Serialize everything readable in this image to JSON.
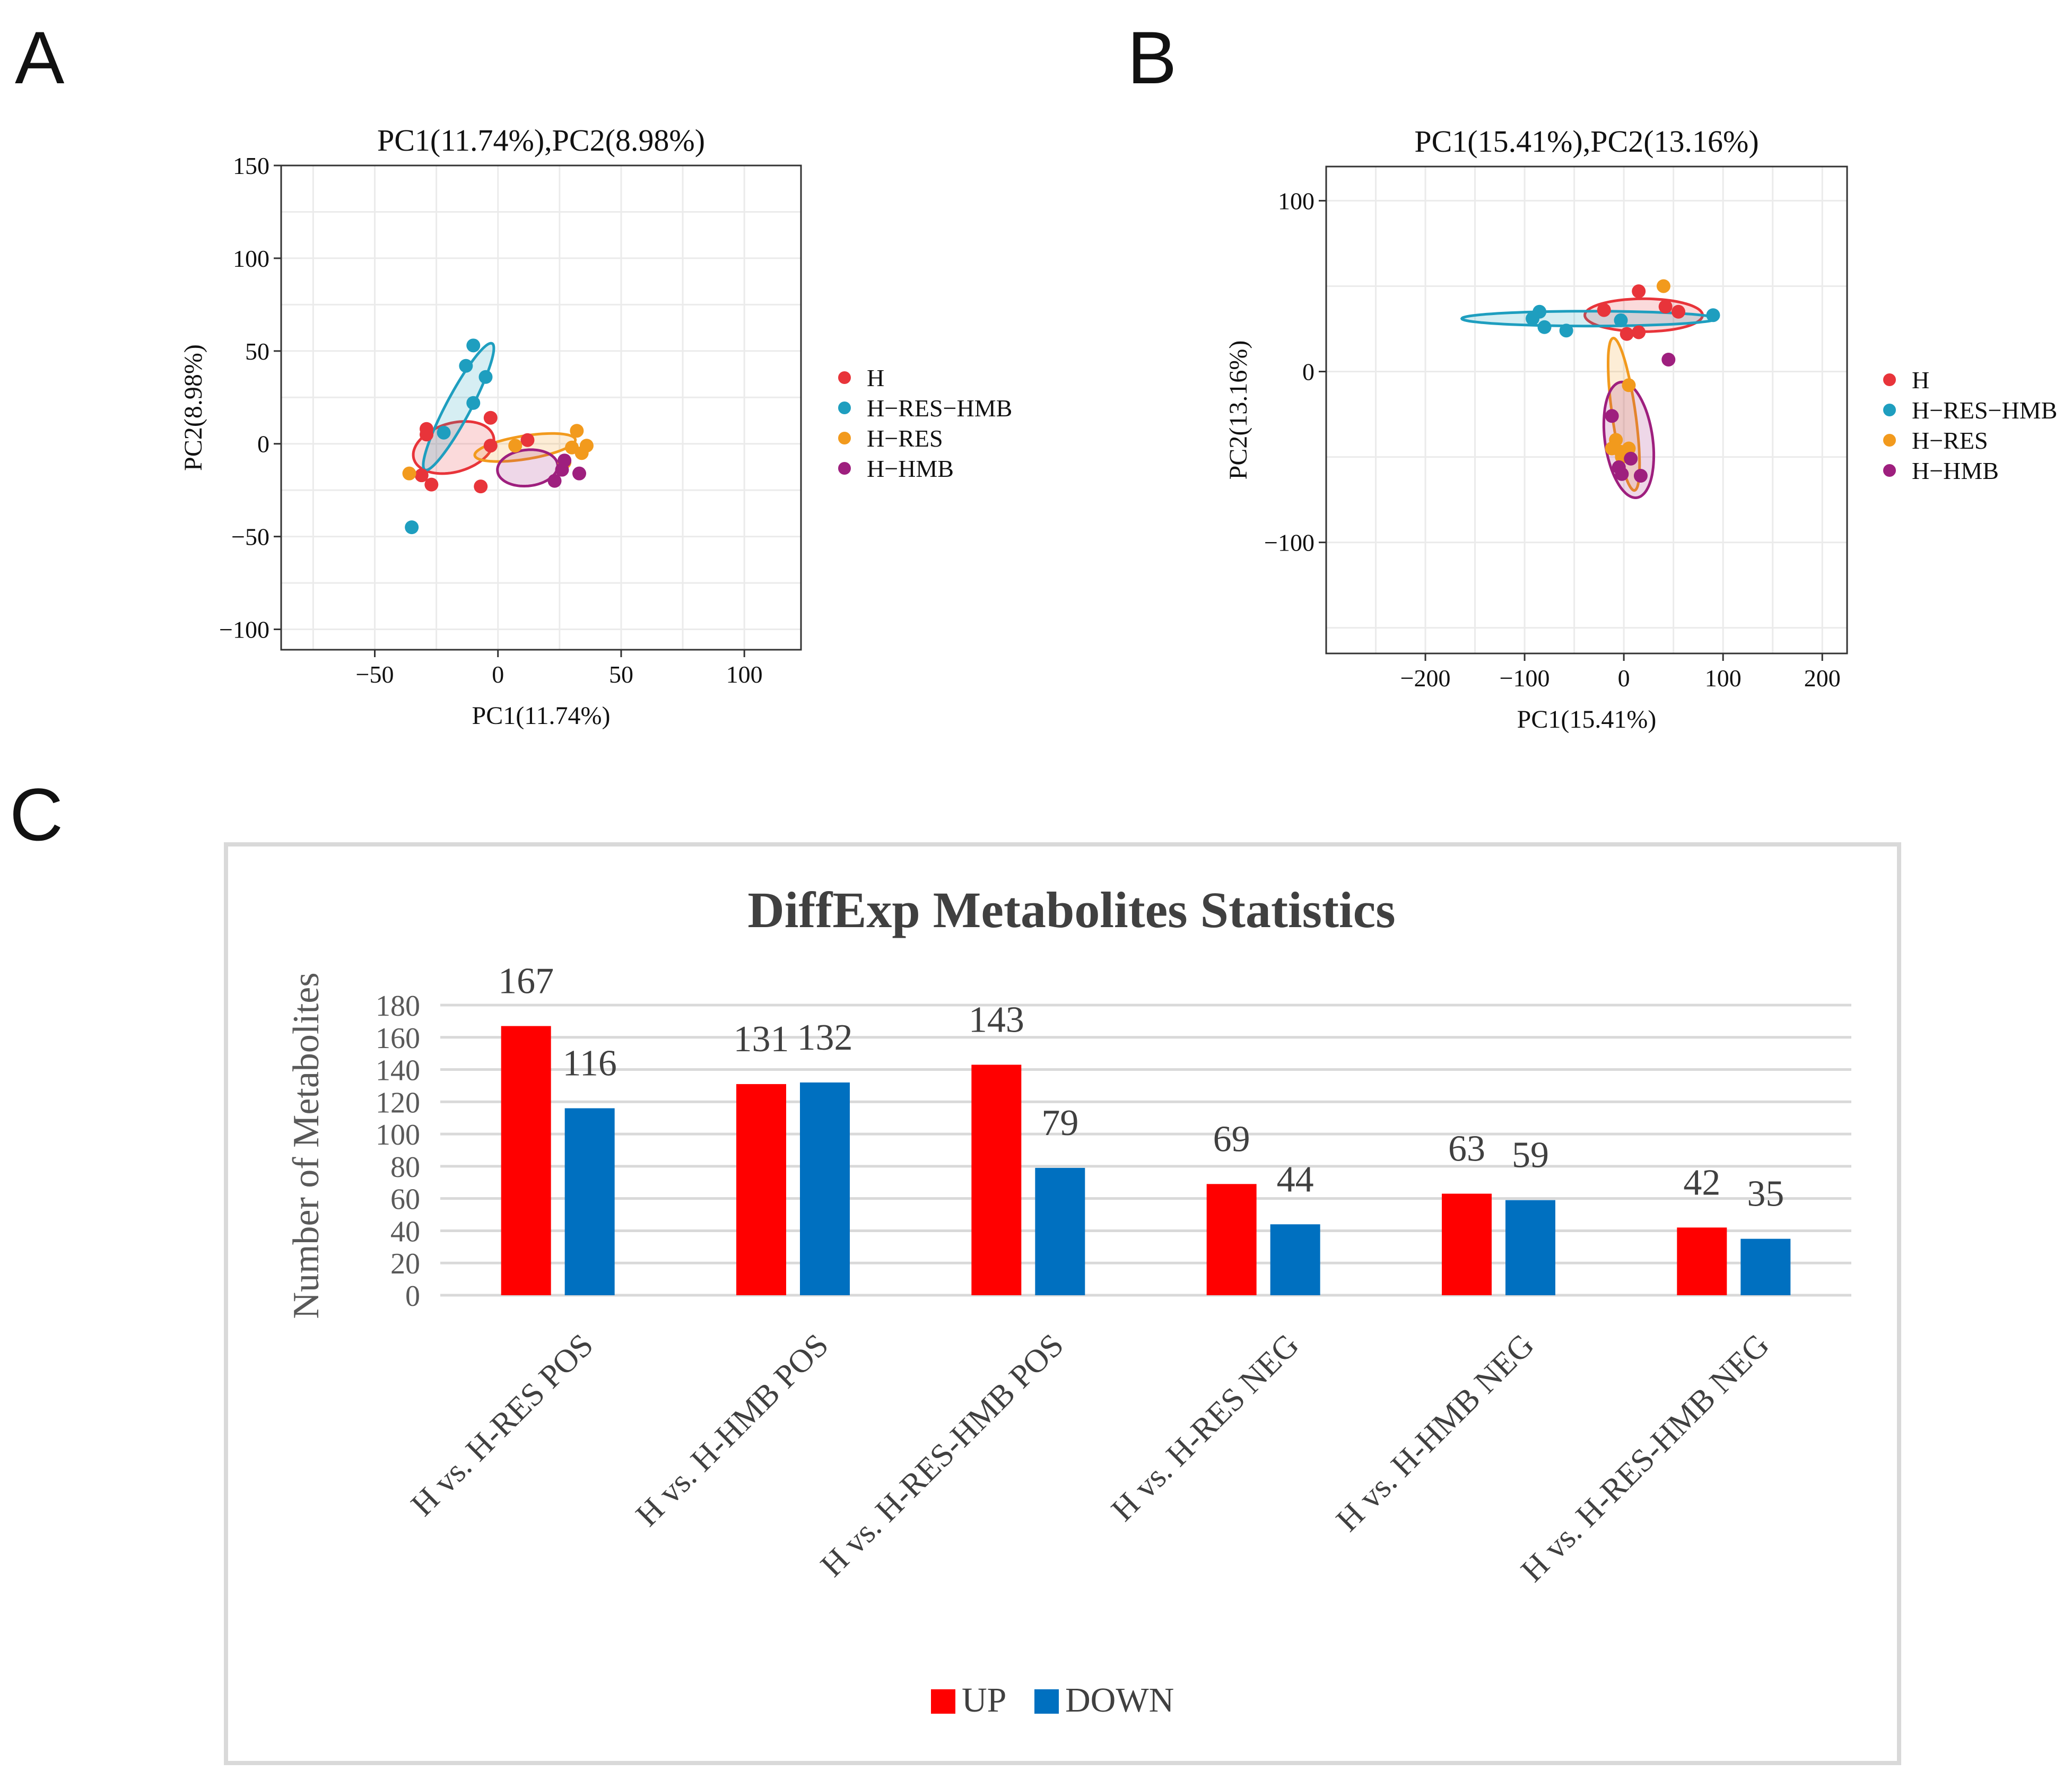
{
  "panels": {
    "a": "A",
    "b": "B",
    "c": "C"
  },
  "chart_data": [
    {
      "type": "scatter",
      "title": "PC1(11.74%),PC2(8.98%)",
      "xlabel": "PC1(11.74%)",
      "ylabel": "PC2(8.98%)",
      "xlim": [
        -88,
        123
      ],
      "ylim": [
        -111,
        150
      ],
      "xticks": [
        -50,
        0,
        50,
        100
      ],
      "yticks": [
        -100,
        -50,
        0,
        50,
        100,
        150
      ],
      "xtick_labels": [
        "−50",
        "0",
        "50",
        "100"
      ],
      "ytick_labels": [
        "−100",
        "−50",
        "0",
        "50",
        "100",
        "150"
      ],
      "grid": true,
      "legend_position": "right",
      "series": [
        {
          "name": "H",
          "color": "#e8343a",
          "points": [
            [
              -29,
              8
            ],
            [
              -29,
              5
            ],
            [
              -31,
              -17
            ],
            [
              -27,
              -22
            ],
            [
              -3,
              14
            ],
            [
              -3,
              -1
            ],
            [
              12,
              2
            ],
            [
              -7,
              -23
            ]
          ],
          "ellipse": {
            "cx": -18,
            "cy": -2,
            "rx": 78,
            "ry": 46,
            "angle": 16
          }
        },
        {
          "name": "H−RES−HMB",
          "color": "#1e9ebf",
          "points": [
            [
              -10,
              53
            ],
            [
              -13,
              42
            ],
            [
              -5,
              36
            ],
            [
              -10,
              22
            ],
            [
              -22,
              6
            ],
            [
              -35,
              -45
            ]
          ],
          "ellipse": {
            "cx": -16,
            "cy": 20,
            "rx": 135,
            "ry": 23,
            "angle": 62
          }
        },
        {
          "name": "H−RES",
          "color": "#f29a1d",
          "points": [
            [
              -36,
              -16
            ],
            [
              7,
              -1
            ],
            [
              32,
              7
            ],
            [
              30,
              -2
            ],
            [
              34,
              -5
            ],
            [
              36,
              -1
            ],
            [
              27,
              -10
            ]
          ],
          "ellipse": {
            "cx": 11,
            "cy": -2,
            "rx": 96,
            "ry": 22,
            "angle": 9
          }
        },
        {
          "name": "H−HMB",
          "color": "#9e1f7e",
          "points": [
            [
              23,
              -20
            ],
            [
              26,
              -14
            ],
            [
              33,
              -16
            ],
            [
              27,
              -9
            ]
          ],
          "ellipse": {
            "cx": 12,
            "cy": -13,
            "rx": 57,
            "ry": 34,
            "angle": 6
          }
        }
      ]
    },
    {
      "type": "scatter",
      "title": "PC1(15.41%),PC2(13.16%)",
      "xlabel": "PC1(15.41%)",
      "ylabel": "PC2(13.16%)",
      "xlim": [
        -300,
        225
      ],
      "ylim": [
        -165,
        120
      ],
      "xticks": [
        -200,
        -100,
        0,
        100,
        200
      ],
      "yticks": [
        -100,
        0,
        100
      ],
      "xtick_labels": [
        "−200",
        "−100",
        "0",
        "100",
        "200"
      ],
      "ytick_labels": [
        "−100",
        "0",
        "100"
      ],
      "grid": true,
      "legend_position": "right",
      "series": [
        {
          "name": "H",
          "color": "#e8343a",
          "points": [
            [
              -20,
              36
            ],
            [
              15,
              47
            ],
            [
              42,
              38
            ],
            [
              55,
              35
            ],
            [
              3,
              22
            ],
            [
              15,
              23
            ]
          ],
          "ellipse": {
            "cx": 20,
            "cy": 33,
            "rx": 111,
            "ry": 31,
            "angle": 0
          }
        },
        {
          "name": "H−RES−HMB",
          "color": "#1e9ebf",
          "points": [
            [
              -92,
              31
            ],
            [
              -85,
              35
            ],
            [
              -80,
              26
            ],
            [
              -58,
              24
            ],
            [
              -3,
              30
            ],
            [
              90,
              33
            ]
          ],
          "ellipse": {
            "cx": -35,
            "cy": 31,
            "rx": 240,
            "ry": 14,
            "angle": 0
          }
        },
        {
          "name": "H−RES",
          "color": "#f29a1d",
          "points": [
            [
              40,
              50
            ],
            [
              5,
              -8
            ],
            [
              -8,
              -40
            ],
            [
              -12,
              -45
            ],
            [
              -3,
              -47
            ],
            [
              5,
              -45
            ],
            [
              -2,
              -50
            ]
          ],
          "ellipse": {
            "cx": 0,
            "cy": -25,
            "rx": 22,
            "ry": 145,
            "angle": 8
          }
        },
        {
          "name": "H−HMB",
          "color": "#9e1f7e",
          "points": [
            [
              -12,
              -26
            ],
            [
              -5,
              -56
            ],
            [
              -2,
              -60
            ],
            [
              7,
              -51
            ],
            [
              17,
              -61
            ],
            [
              45,
              7
            ]
          ],
          "ellipse": {
            "cx": 5,
            "cy": -40,
            "rx": 45,
            "ry": 110,
            "angle": 8
          }
        }
      ]
    },
    {
      "type": "bar",
      "title": "DiffExp Metabolites Statistics",
      "xlabel": "",
      "ylabel": "Number of Metabolites",
      "ylim": [
        0,
        180
      ],
      "yticks": [
        0,
        20,
        40,
        60,
        80,
        100,
        120,
        140,
        160,
        180
      ],
      "grid": true,
      "legend_position": "bottom",
      "categories": [
        "H vs. H-RES POS",
        "H vs. H-HMB POS",
        "H vs. H-RES-HMB POS",
        "H vs. H-RES NEG",
        "H vs. H-HMB NEG",
        "H vs. H-RES-HMB NEG"
      ],
      "series": [
        {
          "name": "UP",
          "color": "#ff0000",
          "values": [
            167,
            131,
            143,
            69,
            63,
            42
          ]
        },
        {
          "name": "DOWN",
          "color": "#0070c0",
          "values": [
            116,
            132,
            79,
            44,
            59,
            35
          ]
        }
      ]
    }
  ]
}
